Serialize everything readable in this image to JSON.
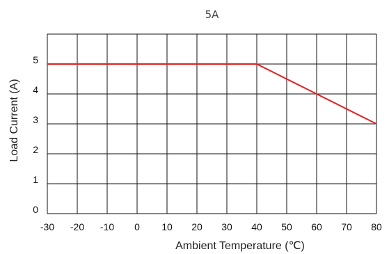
{
  "chart_data": {
    "type": "line",
    "title": "5A",
    "xlabel": "Ambient Temperature (℃)",
    "ylabel": "Load Current (A)",
    "xlim": [
      -30,
      80
    ],
    "ylim": [
      0,
      6
    ],
    "x_ticks": [
      "-30",
      "-20",
      "-10",
      "0",
      "10",
      "20",
      "30",
      "40",
      "50",
      "60",
      "70",
      "80"
    ],
    "y_ticks": [
      "0",
      "1",
      "2",
      "3",
      "4",
      "5"
    ],
    "grid": true,
    "series": [
      {
        "color": "#e02020",
        "points": [
          {
            "x": -30,
            "y": 5
          },
          {
            "x": 40,
            "y": 5
          },
          {
            "x": 80,
            "y": 3
          }
        ]
      }
    ]
  }
}
